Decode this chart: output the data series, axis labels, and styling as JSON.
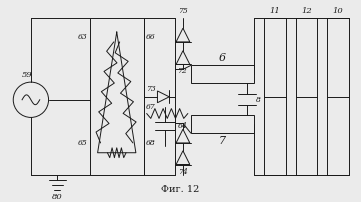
{
  "bg_color": "#ebebeb",
  "line_color": "#1a1a1a",
  "title": "Фиг. 12",
  "fig_w": 3.61,
  "fig_h": 2.02,
  "dpi": 100
}
